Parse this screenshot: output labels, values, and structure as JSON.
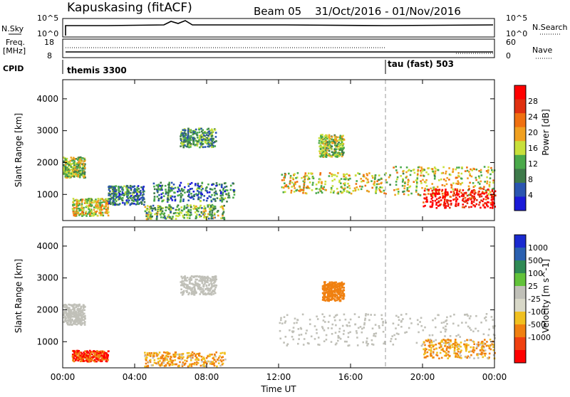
{
  "header": {
    "station": "Kapuskasing (fitACF)",
    "beam": "Beam 05",
    "date_range": "31/Oct/2016 - 01/Nov/2016"
  },
  "nsky": {
    "label": "N.Sky",
    "ticks": [
      "10^5",
      "10^0"
    ],
    "right_ticks": [
      "10^5",
      "10^0"
    ],
    "right_label": "N.Search"
  },
  "freq": {
    "label_line1": "Freq.",
    "label_line2": "[MHz]",
    "ticks": [
      "18",
      "8"
    ],
    "right_ticks": [
      "60",
      "0"
    ],
    "right_label": "Nave"
  },
  "cpid": {
    "label": "CPID",
    "modes": [
      {
        "name": "themis 3300",
        "start_hour": 0
      },
      {
        "name": "tau (fast) 503",
        "start_hour": 18
      }
    ]
  },
  "colors": {
    "power_scale": [
      "#1a1ad8",
      "#2a55b0",
      "#3e7a4a",
      "#4aa94a",
      "#c8e03a",
      "#f0a020",
      "#f07010",
      "#e03010",
      "#ff0000"
    ],
    "velocity_scale": [
      "#1a2ad0",
      "#2a60b0",
      "#2f8a55",
      "#62c23a",
      "#c0c0b8",
      "#d8d8c8",
      "#f0c020",
      "#f08010",
      "#f04010",
      "#ff0000"
    ],
    "ground_scatter": "#c0c0b8"
  },
  "chart_data": [
    {
      "type": "heatmap",
      "panel": "power",
      "xlabel": "Time UT",
      "ylabel": "Slant Range [km]",
      "ylim": [
        180,
        4600
      ],
      "x_ticks": [
        "00:00",
        "04:00",
        "08:00",
        "12:00",
        "16:00",
        "20:00",
        "00:00"
      ],
      "y_ticks": [
        1000,
        2000,
        3000,
        4000
      ],
      "colorbar_label": "Power [dB]",
      "colorbar_ticks": [
        4,
        8,
        12,
        16,
        20,
        24,
        28
      ],
      "regions": [
        {
          "t0": 0.0,
          "t1": 1.2,
          "r0": 1550,
          "r1": 2200,
          "value": 14
        },
        {
          "t0": 0.5,
          "t1": 2.5,
          "r0": 350,
          "r1": 900,
          "value": 16
        },
        {
          "t0": 2.5,
          "t1": 4.5,
          "r0": 700,
          "r1": 1300,
          "value": 8
        },
        {
          "t0": 4.5,
          "t1": 9.0,
          "r0": 250,
          "r1": 700,
          "value": 12
        },
        {
          "t0": 5.0,
          "t1": 9.5,
          "r0": 800,
          "r1": 1400,
          "value": 8
        },
        {
          "t0": 6.5,
          "t1": 8.5,
          "r0": 2500,
          "r1": 3100,
          "value": 10
        },
        {
          "t0": 12.0,
          "t1": 18.0,
          "r0": 1050,
          "r1": 1700,
          "value": 16
        },
        {
          "t0": 14.2,
          "t1": 15.6,
          "r0": 2200,
          "r1": 2900,
          "value": 14
        },
        {
          "t0": 18.0,
          "t1": 24.0,
          "r0": 1000,
          "r1": 1900,
          "value": 16
        },
        {
          "t0": 20.0,
          "t1": 24.0,
          "r0": 600,
          "r1": 1200,
          "value": 28
        }
      ]
    },
    {
      "type": "heatmap",
      "panel": "velocity",
      "xlabel": "Time UT",
      "ylabel": "Slant Range [km]",
      "ylim": [
        180,
        4600
      ],
      "x_ticks": [
        "00:00",
        "04:00",
        "08:00",
        "12:00",
        "16:00",
        "20:00",
        "00:00"
      ],
      "y_ticks": [
        1000,
        2000,
        3000,
        4000
      ],
      "colorbar_label": "Velocity [m s^-1]",
      "colorbar_ticks": [
        1000,
        500,
        100,
        25,
        -25,
        -100,
        -500,
        -1000
      ],
      "regions": [
        {
          "t0": 0.0,
          "t1": 1.2,
          "r0": 1550,
          "r1": 2200,
          "value": 0
        },
        {
          "t0": 0.5,
          "t1": 2.5,
          "r0": 400,
          "r1": 750,
          "value": -500
        },
        {
          "t0": 4.5,
          "t1": 9.0,
          "r0": 250,
          "r1": 700,
          "value": -100
        },
        {
          "t0": 6.5,
          "t1": 8.5,
          "r0": 2500,
          "r1": 3100,
          "value": 0
        },
        {
          "t0": 12.0,
          "t1": 24.0,
          "r0": 900,
          "r1": 1900,
          "value": 0
        },
        {
          "t0": 14.4,
          "t1": 15.6,
          "r0": 2300,
          "r1": 2900,
          "value": -300
        },
        {
          "t0": 20.0,
          "t1": 24.0,
          "r0": 500,
          "r1": 1100,
          "value": -100
        }
      ]
    }
  ]
}
